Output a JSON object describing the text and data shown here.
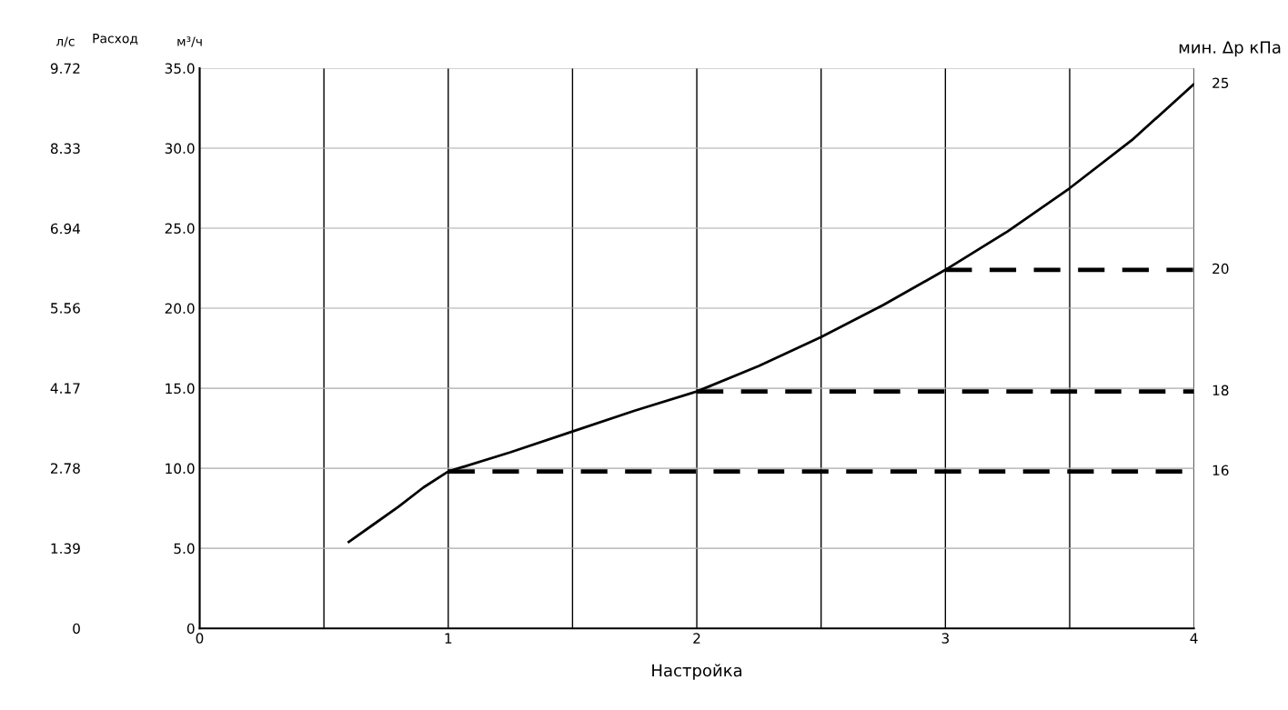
{
  "chart_data": {
    "type": "line",
    "xlabel": "Настройка",
    "ylabel": "м³/ч",
    "y2label": "л/с",
    "annotations": [
      "Расход",
      "мин. Δp кПа"
    ],
    "legend": false,
    "xlim": [
      0,
      4
    ],
    "xticks": [
      0,
      {
        "value": 0.5,
        "label": null
      },
      1,
      {
        "value": 1.5,
        "label": null
      },
      2,
      {
        "value": 2.5,
        "label": null
      },
      3,
      {
        "value": 3.5,
        "label": null
      },
      4
    ],
    "ylim": [
      0,
      35
    ],
    "yticks": [
      0,
      {
        "value": 5,
        "label": "5.0"
      },
      {
        "value": 10,
        "label": "10.0"
      },
      {
        "value": 15,
        "label": "15.0"
      },
      {
        "value": 20,
        "label": "20.0"
      },
      {
        "value": 25,
        "label": "25.0"
      },
      {
        "value": 30,
        "label": "30.0"
      },
      {
        "value": 35,
        "label": "35.0"
      }
    ],
    "y2lim": [
      0,
      9.72
    ],
    "y2ticks": [
      0,
      1.39,
      2.78,
      4.17,
      5.56,
      6.94,
      8.33,
      9.72
    ],
    "grid": true,
    "marker": "none",
    "series": [
      {
        "name": "25",
        "color": "#000000",
        "line_style": "solid",
        "x": [
          0.6,
          0.7,
          0.8,
          0.9,
          1,
          1.25,
          1.5,
          1.75,
          2,
          2.25,
          2.5,
          2.75,
          3,
          3.25,
          3.5,
          3.75,
          4
        ],
        "values": [
          5.4,
          6.5,
          7.6,
          8.8,
          9.8,
          11.0,
          12.3,
          13.6,
          14.8,
          16.4,
          18.2,
          20.2,
          22.4,
          24.8,
          27.5,
          30.5,
          34.0
        ]
      },
      {
        "name": "16",
        "color": "#000000",
        "line_style": "dashed",
        "x": [
          1,
          4
        ],
        "values": [
          9.8,
          9.8
        ]
      },
      {
        "name": "18",
        "color": "#000000",
        "line_style": "dashed",
        "x": [
          2,
          4
        ],
        "values": [
          14.8,
          14.8
        ]
      },
      {
        "name": "20",
        "color": "#000000",
        "line_style": "dashed",
        "x": [
          3,
          4
        ],
        "values": [
          22.4,
          22.4
        ]
      }
    ]
  }
}
